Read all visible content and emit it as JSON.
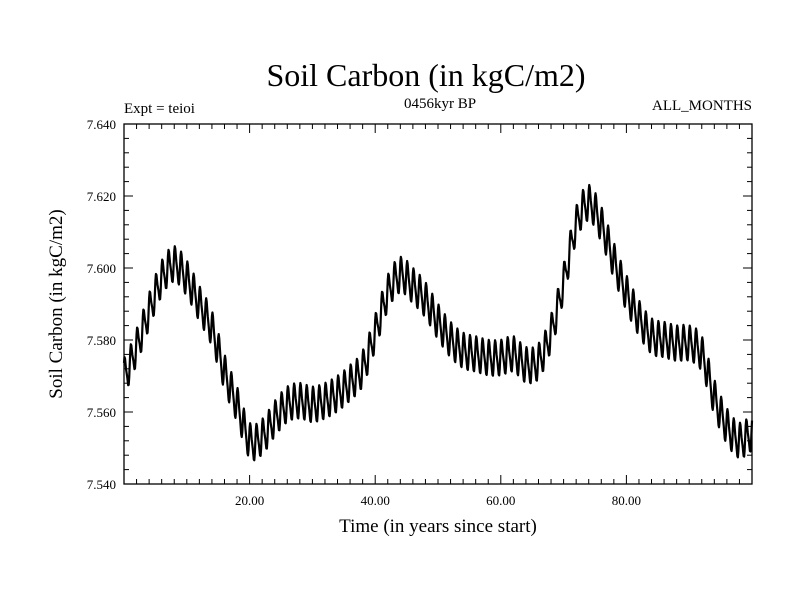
{
  "chart_data": {
    "type": "line",
    "title": "Soil Carbon (in kgC/m2)",
    "subtitle_left": "Expt = teioi",
    "subtitle_center": "0456kyr BP",
    "subtitle_right": "ALL_MONTHS",
    "xlabel": "Time (in years since start)",
    "ylabel": "Soil Carbon (in kgC/m2)",
    "xlim": [
      0,
      100
    ],
    "ylim": [
      7.54,
      7.64
    ],
    "x_ticks": [
      20,
      40,
      60,
      80
    ],
    "x_tick_labels": [
      "20.00",
      "40.00",
      "60.00",
      "80.00"
    ],
    "y_ticks": [
      7.54,
      7.56,
      7.58,
      7.6,
      7.62,
      7.64
    ],
    "y_tick_labels": [
      "7.540",
      "7.560",
      "7.580",
      "7.600",
      "7.620",
      "7.640"
    ],
    "grid": false,
    "seasonal_amplitude": 0.0045,
    "series": [
      {
        "name": "Soil Carbon",
        "trend": {
          "x": [
            0,
            2,
            4,
            6,
            8,
            10,
            12,
            14,
            16,
            18,
            20,
            22,
            24,
            26,
            28,
            30,
            32,
            34,
            36,
            38,
            40,
            42,
            44,
            46,
            48,
            50,
            52,
            54,
            56,
            58,
            60,
            62,
            64,
            66,
            68,
            70,
            72,
            74,
            76,
            78,
            80,
            82,
            84,
            86,
            88,
            90,
            92,
            94,
            96,
            98,
            100
          ],
          "values": [
            7.57,
            7.578,
            7.588,
            7.597,
            7.601,
            7.597,
            7.59,
            7.583,
            7.571,
            7.562,
            7.552,
            7.553,
            7.558,
            7.562,
            7.563,
            7.562,
            7.563,
            7.565,
            7.568,
            7.572,
            7.582,
            7.593,
            7.598,
            7.595,
            7.591,
            7.585,
            7.58,
            7.577,
            7.576,
            7.575,
            7.575,
            7.576,
            7.573,
            7.574,
            7.582,
            7.596,
            7.612,
            7.618,
            7.612,
            7.602,
            7.593,
            7.586,
            7.581,
            7.58,
            7.579,
            7.579,
            7.576,
            7.564,
            7.556,
            7.552,
            7.554
          ]
        }
      }
    ]
  }
}
